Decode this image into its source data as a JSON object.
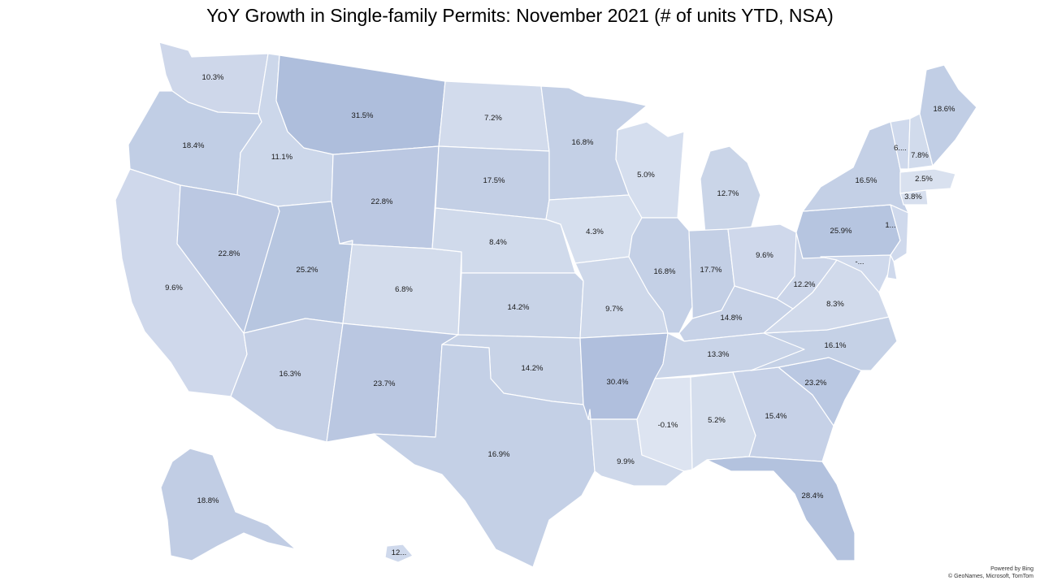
{
  "title": "YoY Growth in Single-family Permits: November 2021 (# of units YTD, NSA)",
  "credits": {
    "line1": "Powered by Bing",
    "line2": "© GeoNames, Microsoft, TomTom"
  },
  "colors": {
    "low": "#dde4f1",
    "high": "#aebedc",
    "border": "#ffffff"
  },
  "states": [
    {
      "id": "WA",
      "label": "10.3%",
      "value": 10.3
    },
    {
      "id": "OR",
      "label": "18.4%",
      "value": 18.4
    },
    {
      "id": "CA",
      "label": "9.6%",
      "value": 9.6
    },
    {
      "id": "ID",
      "label": "11.1%",
      "value": 11.1
    },
    {
      "id": "NV",
      "label": "22.8%",
      "value": 22.8
    },
    {
      "id": "MT",
      "label": "31.5%",
      "value": 31.5
    },
    {
      "id": "WY",
      "label": "22.8%",
      "value": 22.8
    },
    {
      "id": "UT",
      "label": "25.2%",
      "value": 25.2
    },
    {
      "id": "AZ",
      "label": "16.3%",
      "value": 16.3
    },
    {
      "id": "CO",
      "label": "6.8%",
      "value": 6.8
    },
    {
      "id": "NM",
      "label": "23.7%",
      "value": 23.7
    },
    {
      "id": "ND",
      "label": "7.2%",
      "value": 7.2
    },
    {
      "id": "SD",
      "label": "17.5%",
      "value": 17.5
    },
    {
      "id": "NE",
      "label": "8.4%",
      "value": 8.4
    },
    {
      "id": "KS",
      "label": "14.2%",
      "value": 14.2
    },
    {
      "id": "OK",
      "label": "14.2%",
      "value": 14.2
    },
    {
      "id": "TX",
      "label": "16.9%",
      "value": 16.9
    },
    {
      "id": "MN",
      "label": "16.8%",
      "value": 16.8
    },
    {
      "id": "IA",
      "label": "4.3%",
      "value": 4.3
    },
    {
      "id": "MO",
      "label": "9.7%",
      "value": 9.7
    },
    {
      "id": "AR",
      "label": "30.4%",
      "value": 30.4
    },
    {
      "id": "LA",
      "label": "9.9%",
      "value": 9.9
    },
    {
      "id": "WI",
      "label": "5.0%",
      "value": 5.0
    },
    {
      "id": "IL",
      "label": "16.8%",
      "value": 16.8
    },
    {
      "id": "MI",
      "label": "12.7%",
      "value": 12.7
    },
    {
      "id": "IN",
      "label": "17.7%",
      "value": 17.7
    },
    {
      "id": "OH",
      "label": "9.6%",
      "value": 9.6
    },
    {
      "id": "KY",
      "label": "14.8%",
      "value": 14.8
    },
    {
      "id": "TN",
      "label": "13.3%",
      "value": 13.3
    },
    {
      "id": "MS",
      "label": "-0.1%",
      "value": -0.1
    },
    {
      "id": "AL",
      "label": "5.2%",
      "value": 5.2
    },
    {
      "id": "GA",
      "label": "15.4%",
      "value": 15.4
    },
    {
      "id": "FL",
      "label": "28.4%",
      "value": 28.4
    },
    {
      "id": "SC",
      "label": "23.2%",
      "value": 23.2
    },
    {
      "id": "NC",
      "label": "16.1%",
      "value": 16.1
    },
    {
      "id": "VA",
      "label": "8.3%",
      "value": 8.3
    },
    {
      "id": "WV",
      "label": "12.2%",
      "value": 12.2
    },
    {
      "id": "PA",
      "label": "25.9%",
      "value": 25.9
    },
    {
      "id": "NY",
      "label": "16.5%",
      "value": 16.5
    },
    {
      "id": "NJ",
      "label": "1...",
      "value": null
    },
    {
      "id": "MD",
      "label": "-...",
      "value": null
    },
    {
      "id": "DE",
      "label": "",
      "value": null
    },
    {
      "id": "CT",
      "label": "3.8%",
      "value": 3.8
    },
    {
      "id": "MA",
      "label": "2.5%",
      "value": 2.5
    },
    {
      "id": "VT",
      "label": "6....",
      "value": null
    },
    {
      "id": "NH",
      "label": "7.8%",
      "value": 7.8
    },
    {
      "id": "ME",
      "label": "18.6%",
      "value": 18.6
    },
    {
      "id": "AK",
      "label": "18.8%",
      "value": 18.8
    },
    {
      "id": "HI",
      "label": "12...",
      "value": null
    }
  ]
}
